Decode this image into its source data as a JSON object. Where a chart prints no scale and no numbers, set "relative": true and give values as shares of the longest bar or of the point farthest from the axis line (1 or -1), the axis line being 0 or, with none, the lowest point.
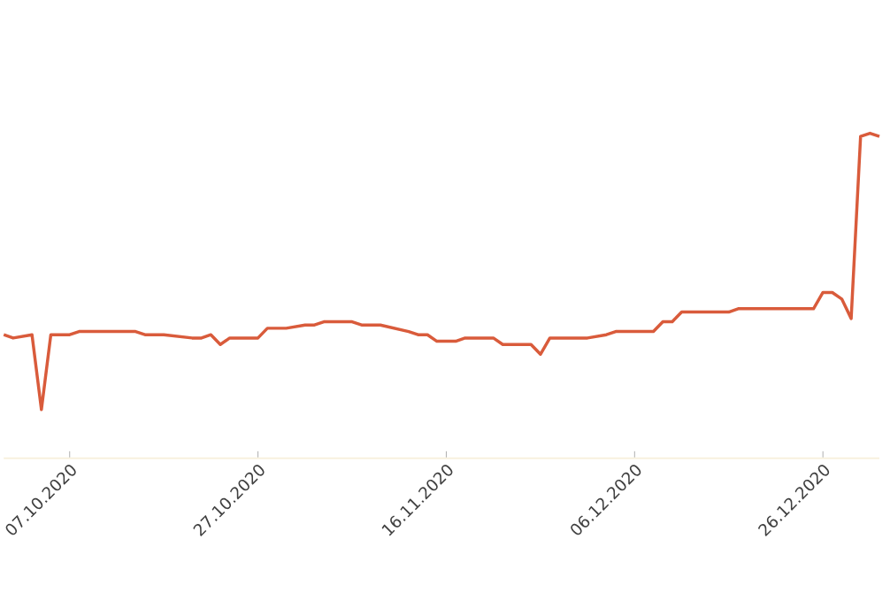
{
  "chart_data": {
    "type": "line",
    "relative": true,
    "color": "#d95b3b",
    "x": [
      "2020-09-30",
      "2020-10-01",
      "2020-10-03",
      "2020-10-04",
      "2020-10-05",
      "2020-10-07",
      "2020-10-08",
      "2020-10-10",
      "2020-10-12",
      "2020-10-13",
      "2020-10-14",
      "2020-10-15",
      "2020-10-17",
      "2020-10-20",
      "2020-10-21",
      "2020-10-22",
      "2020-10-23",
      "2020-10-24",
      "2020-10-27",
      "2020-10-28",
      "2020-10-30",
      "2020-11-01",
      "2020-11-02",
      "2020-11-03",
      "2020-11-05",
      "2020-11-06",
      "2020-11-07",
      "2020-11-09",
      "2020-11-12",
      "2020-11-13",
      "2020-11-14",
      "2020-11-15",
      "2020-11-17",
      "2020-11-18",
      "2020-11-21",
      "2020-11-22",
      "2020-11-24",
      "2020-11-25",
      "2020-11-26",
      "2020-11-27",
      "2020-11-29",
      "2020-12-01",
      "2020-12-03",
      "2020-12-04",
      "2020-12-06",
      "2020-12-07",
      "2020-12-08",
      "2020-12-09",
      "2020-12-10",
      "2020-12-11",
      "2020-12-14",
      "2020-12-16",
      "2020-12-17",
      "2020-12-22",
      "2020-12-25",
      "2020-12-26",
      "2020-12-27",
      "2020-12-28",
      "2020-12-29",
      "2020-12-30",
      "2020-12-31",
      "2021-01-01"
    ],
    "values": [
      0.38,
      0.37,
      0.38,
      0.15,
      0.38,
      0.38,
      0.39,
      0.39,
      0.39,
      0.39,
      0.39,
      0.38,
      0.38,
      0.37,
      0.37,
      0.38,
      0.35,
      0.37,
      0.37,
      0.4,
      0.4,
      0.41,
      0.41,
      0.42,
      0.42,
      0.42,
      0.41,
      0.41,
      0.39,
      0.38,
      0.38,
      0.36,
      0.36,
      0.37,
      0.37,
      0.35,
      0.35,
      0.35,
      0.32,
      0.37,
      0.37,
      0.37,
      0.38,
      0.39,
      0.39,
      0.39,
      0.39,
      0.42,
      0.42,
      0.45,
      0.45,
      0.45,
      0.46,
      0.46,
      0.46,
      0.51,
      0.51,
      0.49,
      0.43,
      0.99,
      1.0,
      0.99
    ],
    "xlim": [
      "2020-09-30",
      "2021-01-01"
    ],
    "xticks": [
      {
        "value": "2020-10-07",
        "label": "07.10.2020"
      },
      {
        "value": "2020-10-27",
        "label": "27.10.2020"
      },
      {
        "value": "2020-11-16",
        "label": "16.11.2020"
      },
      {
        "value": "2020-12-06",
        "label": "06.12.2020"
      },
      {
        "value": "2020-12-26",
        "label": "26.12.2020"
      }
    ],
    "marker": "none",
    "line_style": "solid"
  }
}
